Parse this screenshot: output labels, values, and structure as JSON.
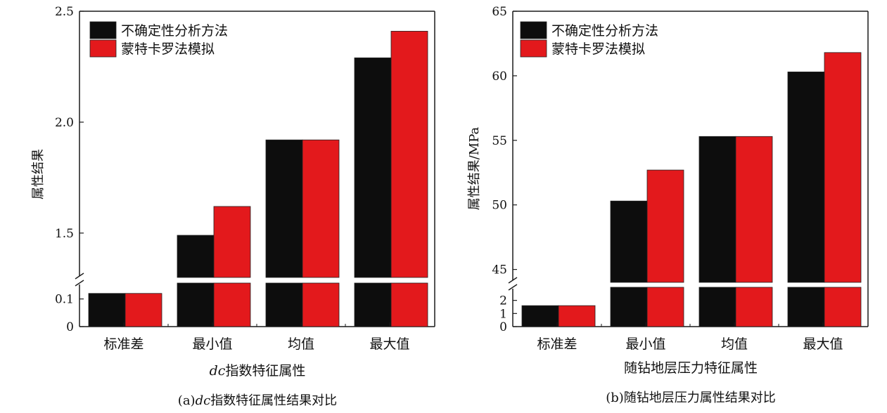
{
  "colors": {
    "series1": "#0d0d0d",
    "series2": "#e3191c",
    "axis": "#1a1a1a"
  },
  "chart_data": [
    {
      "type": "bar",
      "caption_prefix": "(a)",
      "caption_italic": "dc",
      "caption_rest": "指数特征属性结果对比",
      "xlabel_italic": "dc",
      "xlabel_rest": "指数特征属性",
      "ylabel": "属性结果",
      "categories": [
        "标准差",
        "最小值",
        "均值",
        "最大值"
      ],
      "series": [
        {
          "name": "不确定性分析方法",
          "values": [
            0.12,
            1.49,
            1.92,
            2.29
          ]
        },
        {
          "name": "蒙特卡罗法模拟",
          "values": [
            0.12,
            1.62,
            1.92,
            2.41
          ]
        }
      ],
      "upper_ylim": [
        1.3,
        2.5
      ],
      "upper_ticks": [
        "1.5",
        "2.0",
        "2.5"
      ],
      "lower_ylim": [
        0,
        0.16
      ],
      "lower_ticks": [
        "0",
        "0.1"
      ],
      "axis_break": true,
      "legend": "top-left",
      "grid": false
    },
    {
      "type": "bar",
      "caption_prefix": "(b)",
      "caption_rest": "随钻地层压力属性结果对比",
      "xlabel_rest": "随钻地层压力特征属性",
      "ylabel": "属性结果/MPa",
      "categories": [
        "标准差",
        "最小值",
        "均值",
        "最大值"
      ],
      "series": [
        {
          "name": "不确定性分析方法",
          "values": [
            1.6,
            50.3,
            55.3,
            60.3
          ]
        },
        {
          "name": "蒙特卡罗法模拟",
          "values": [
            1.6,
            52.7,
            55.3,
            61.8
          ]
        }
      ],
      "upper_ylim": [
        44,
        65
      ],
      "upper_ticks": [
        "45",
        "50",
        "55",
        "60",
        "65"
      ],
      "lower_ylim": [
        0,
        3
      ],
      "lower_ticks": [
        "0",
        "1",
        "2"
      ],
      "axis_break": true,
      "legend": "top-left",
      "grid": false
    }
  ]
}
